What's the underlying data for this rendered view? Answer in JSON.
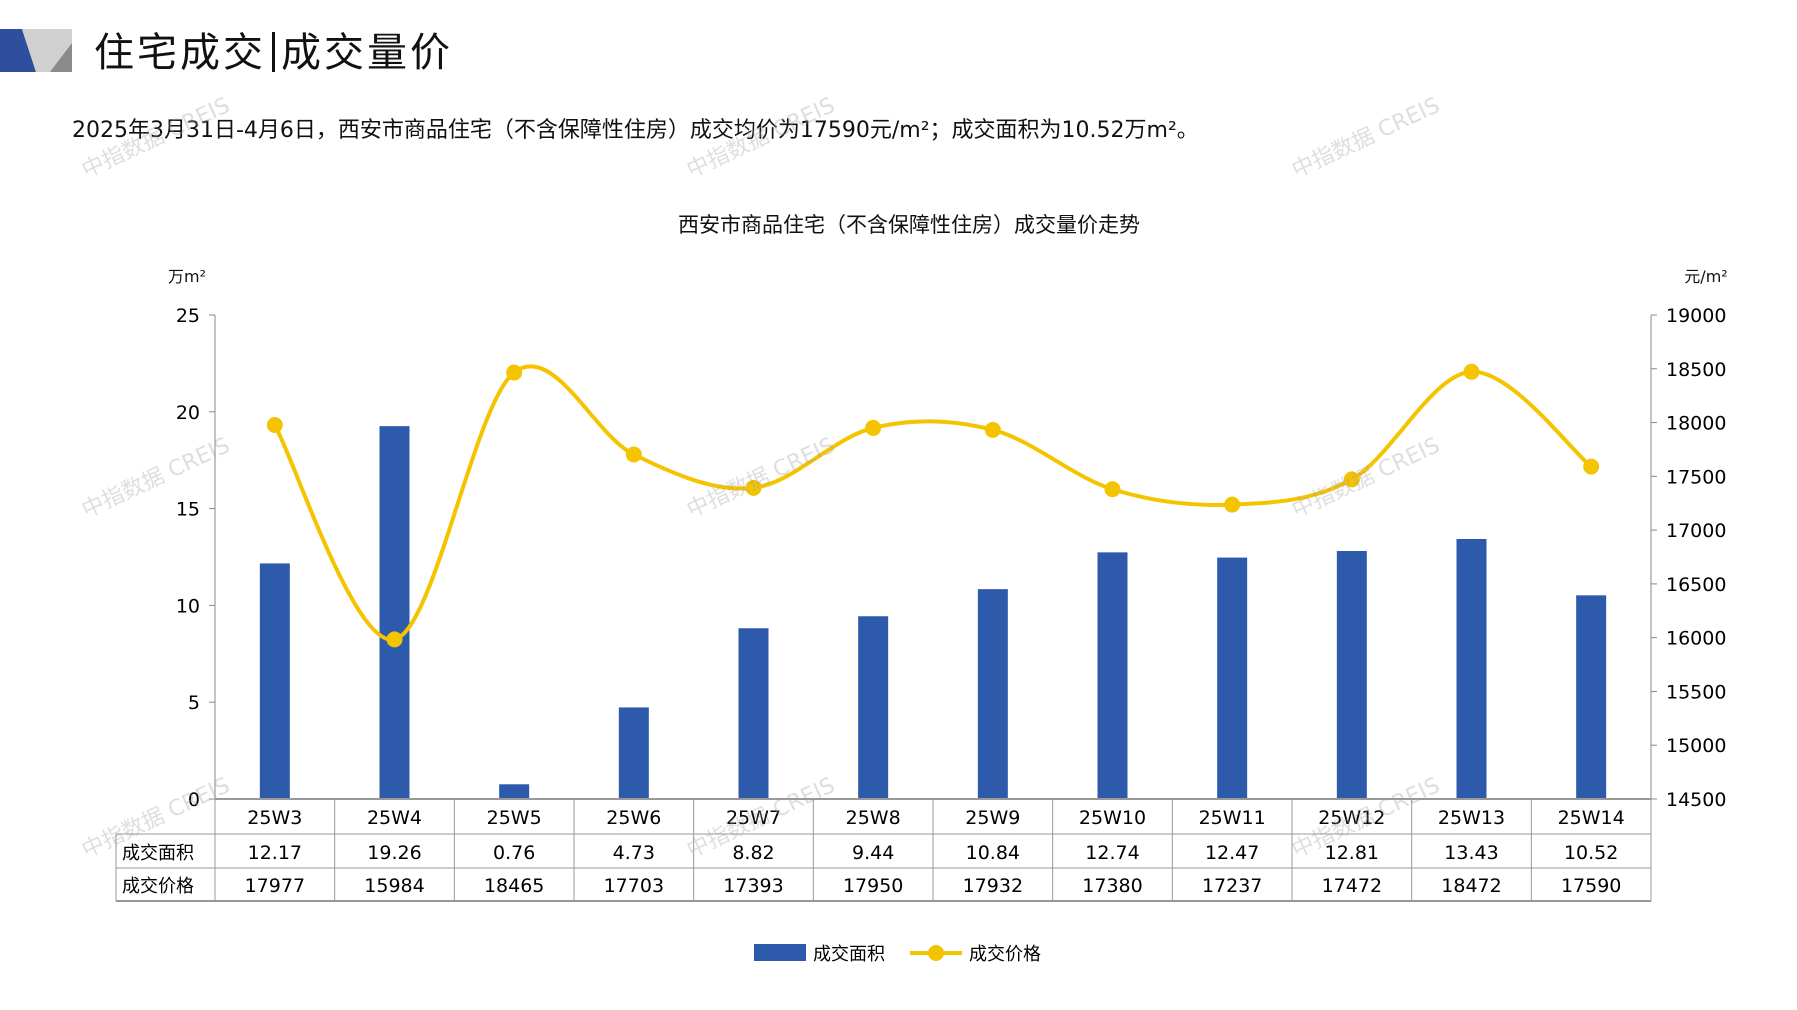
{
  "header": {
    "title_left": "住宅成交",
    "title_right": "成交量价"
  },
  "summary": "2025年3月31日-4月6日，西安市商品住宅（不含保障性住房）成交均价为17590元/m²；成交面积为10.52万m²。",
  "watermark": "中指数据 CREIS",
  "colors": {
    "bar": "#2E5AAC",
    "line": "#F5C400",
    "brand": "#2E4F9E"
  },
  "chart_data": {
    "type": "bar+line",
    "title": "西安市商品住宅（不含保障性住房）成交量价走势",
    "categories": [
      "25W3",
      "25W4",
      "25W5",
      "25W6",
      "25W7",
      "25W8",
      "25W9",
      "25W10",
      "25W11",
      "25W12",
      "25W13",
      "25W14"
    ],
    "series": [
      {
        "name": "成交面积",
        "type": "bar",
        "axis": "left",
        "values": [
          12.17,
          19.26,
          0.76,
          4.73,
          8.82,
          9.44,
          10.84,
          12.74,
          12.47,
          12.81,
          13.43,
          10.52
        ],
        "display": [
          "12.17",
          "19.26",
          "0.76",
          "4.73",
          "8.82",
          "9.44",
          "10.84",
          "12.74",
          "12.47",
          "12.81",
          "13.43",
          "10.52"
        ]
      },
      {
        "name": "成交价格",
        "type": "line",
        "axis": "right",
        "values": [
          17977,
          15984,
          18465,
          17703,
          17393,
          17950,
          17932,
          17380,
          17237,
          17472,
          18472,
          17590
        ]
      }
    ],
    "ylabel_left": "万m²",
    "ylabel_right": "元/m²",
    "ylim_left": [
      0,
      25
    ],
    "yticks_left": [
      0,
      5,
      10,
      15,
      20,
      25
    ],
    "ylim_right": [
      14500,
      19000
    ],
    "yticks_right": [
      14500,
      15000,
      15500,
      16000,
      16500,
      17000,
      17500,
      18000,
      18500,
      19000
    ],
    "legend_position": "bottom",
    "data_table": true
  }
}
